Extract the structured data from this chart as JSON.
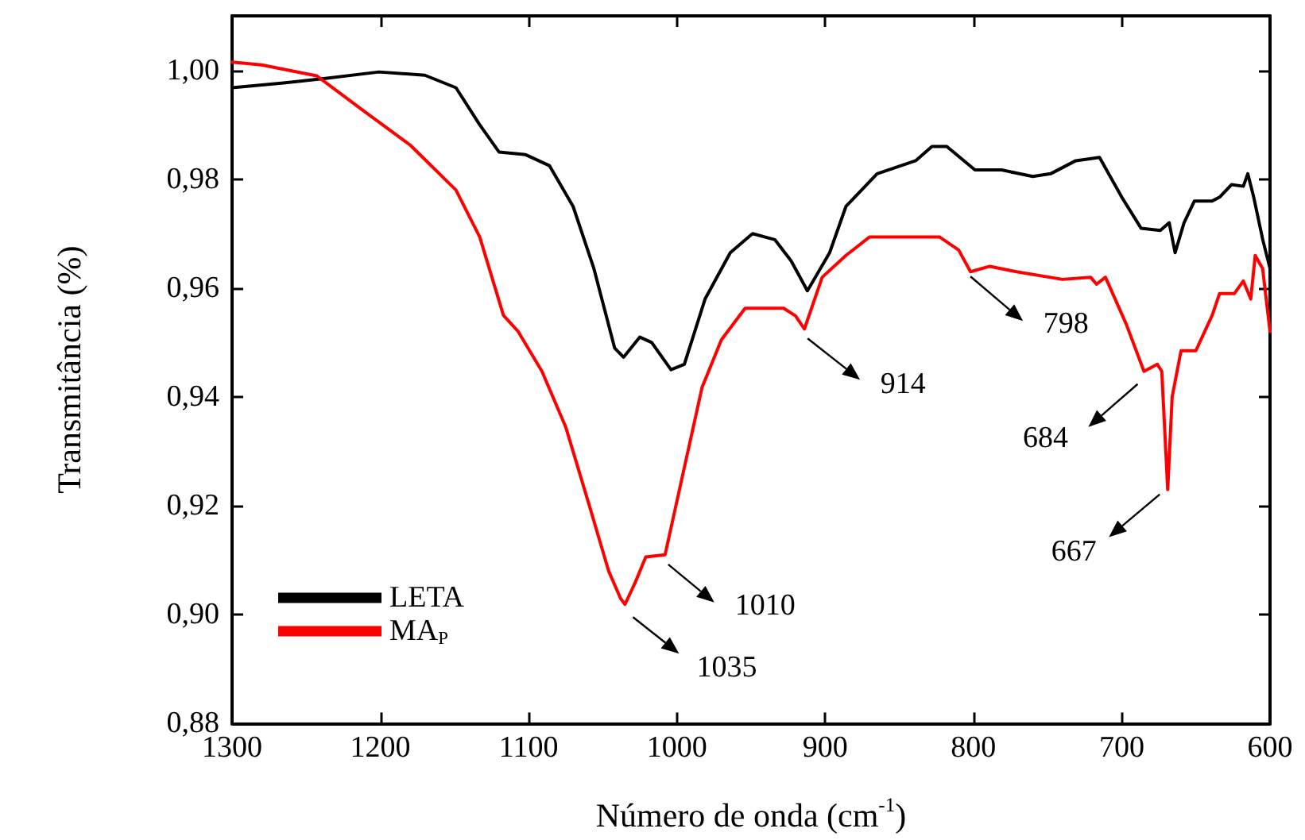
{
  "chart_data": {
    "type": "line",
    "xlabel": "Número de onda (cm$^{-1}$)",
    "ylabel": "Transmitância (%)",
    "xlim": [
      1300,
      600
    ],
    "xticks": [
      1300,
      1200,
      1100,
      1000,
      900,
      800,
      700,
      600
    ],
    "ylim": [
      0.88,
      1.01
    ],
    "yticks": [
      {
        "value": 0.88,
        "label": "0,88"
      },
      {
        "value": 0.9,
        "label": "0,90"
      },
      {
        "value": 0.92,
        "label": "0,92"
      },
      {
        "value": 0.94,
        "label": "0,94"
      },
      {
        "value": 0.96,
        "label": "0,96"
      },
      {
        "value": 0.98,
        "label": "0,98"
      },
      {
        "value": 1.0,
        "label": "1,00"
      }
    ],
    "grid": false,
    "legend": "bottom left",
    "marker": "none",
    "line_style": "solid",
    "series": [
      {
        "name": "LETA",
        "color": "#000000",
        "x": [
          1300,
          1264,
          1237,
          1201,
          1170,
          1149,
          1133,
          1120,
          1102,
          1086,
          1070,
          1056,
          1042,
          1036,
          1025,
          1017,
          1004,
          995,
          981,
          964,
          949,
          934,
          923,
          912,
          897,
          886,
          865,
          839,
          828,
          818,
          799,
          781,
          760,
          748,
          731,
          715,
          700,
          687,
          674,
          668,
          664,
          658,
          651,
          639,
          634,
          626,
          618,
          615,
          611,
          605,
          600
        ],
        "values": [
          0.9968,
          0.9977,
          0.9985,
          0.9997,
          0.9991,
          0.9968,
          0.99,
          0.985,
          0.9845,
          0.9825,
          0.975,
          0.9636,
          0.949,
          0.9473,
          0.951,
          0.95,
          0.945,
          0.946,
          0.958,
          0.9665,
          0.97,
          0.9689,
          0.965,
          0.9595,
          0.9665,
          0.975,
          0.981,
          0.9834,
          0.986,
          0.986,
          0.9817,
          0.9817,
          0.9805,
          0.981,
          0.9834,
          0.984,
          0.9767,
          0.971,
          0.9706,
          0.972,
          0.9665,
          0.972,
          0.976,
          0.976,
          0.9767,
          0.979,
          0.9787,
          0.981,
          0.9767,
          0.969,
          0.9636
        ]
      },
      {
        "name": "MA$_{P}$",
        "color": "#ff0000",
        "x": [
          1300,
          1280,
          1243,
          1212,
          1180,
          1149,
          1133,
          1117,
          1107,
          1091,
          1075,
          1059,
          1046,
          1038,
          1035,
          1028,
          1021,
          1008,
          996,
          983,
          970,
          954,
          928,
          920,
          914,
          902,
          886,
          870,
          844,
          823,
          810,
          802,
          789,
          771,
          740,
          721,
          717,
          711,
          697,
          685,
          676,
          673,
          669,
          666,
          660,
          650,
          639,
          634,
          624,
          618,
          613,
          610,
          605,
          600
        ],
        "values": [
          1.0015,
          1.001,
          0.999,
          0.9927,
          0.9863,
          0.978,
          0.9694,
          0.955,
          0.952,
          0.9447,
          0.9345,
          0.92,
          0.908,
          0.903,
          0.9019,
          0.906,
          0.9106,
          0.911,
          0.9258,
          0.9418,
          0.9505,
          0.9563,
          0.9563,
          0.9549,
          0.9525,
          0.962,
          0.966,
          0.9694,
          0.9694,
          0.9694,
          0.967,
          0.963,
          0.964,
          0.963,
          0.9616,
          0.962,
          0.9607,
          0.962,
          0.9534,
          0.9447,
          0.946,
          0.9447,
          0.923,
          0.94,
          0.9485,
          0.9485,
          0.955,
          0.959,
          0.959,
          0.9613,
          0.958,
          0.966,
          0.9636,
          0.952
        ]
      }
    ],
    "annotations": [
      {
        "text": "1035",
        "x": 1035,
        "y": 0.9019
      },
      {
        "text": "1010",
        "x": 1008,
        "y": 0.911
      },
      {
        "text": "914",
        "x": 914,
        "y": 0.9525
      },
      {
        "text": "798",
        "x": 802,
        "y": 0.963
      },
      {
        "text": "684",
        "x": 685,
        "y": 0.9447
      },
      {
        "text": "667",
        "x": 669,
        "y": 0.923
      }
    ]
  }
}
